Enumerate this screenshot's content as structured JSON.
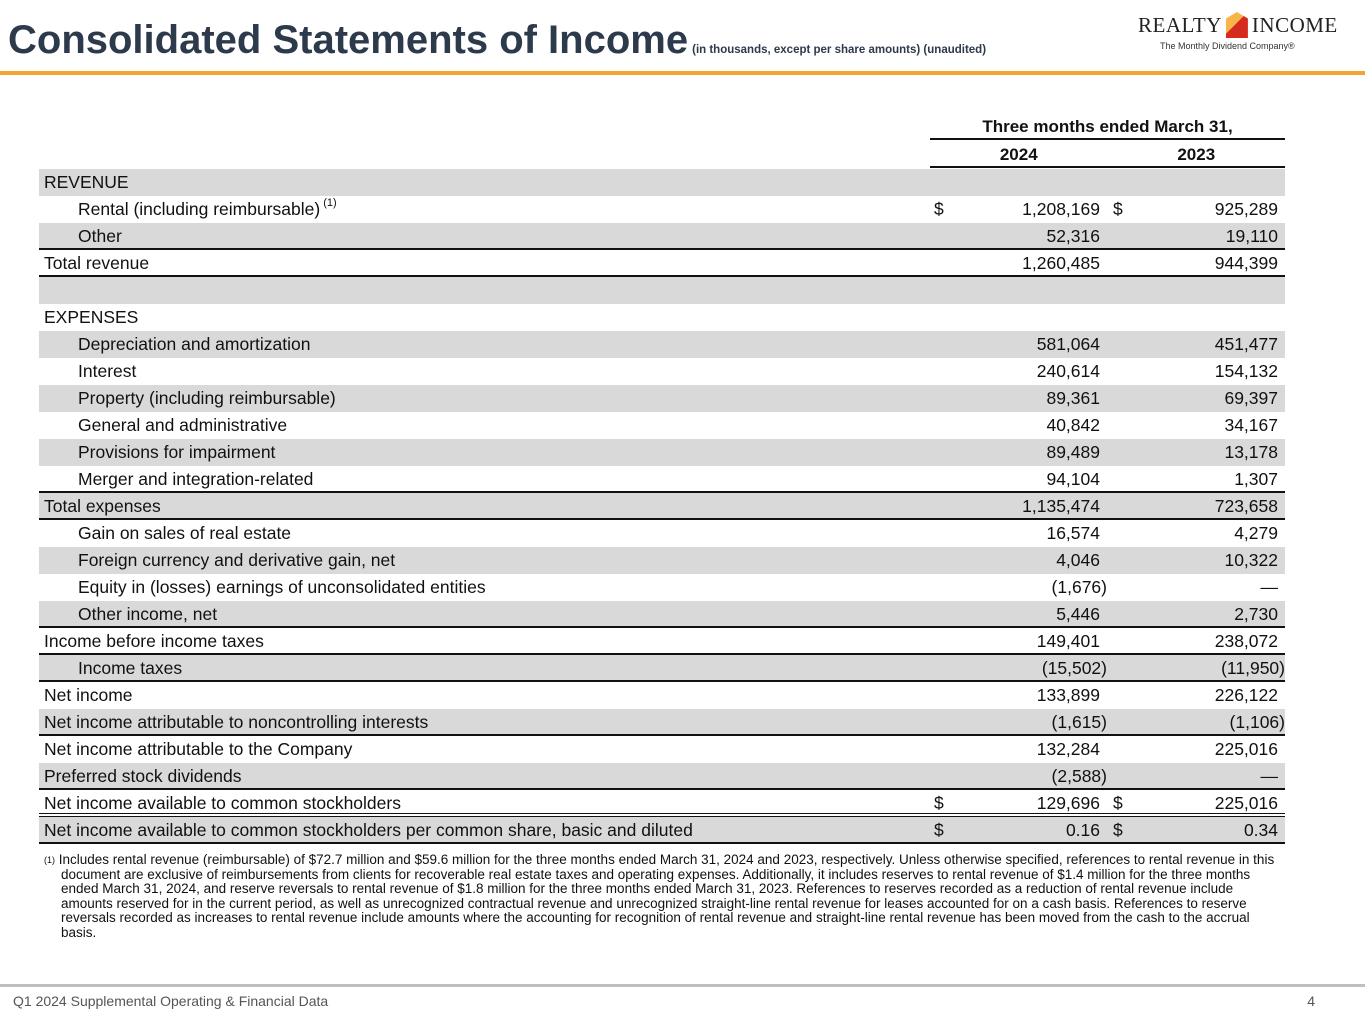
{
  "header": {
    "title": "Consolidated Statements of Income",
    "subtitle": "(in thousands, except per share amounts) (unaudited)"
  },
  "logo": {
    "name_left": "REALTY",
    "name_right": "INCOME",
    "tagline": "The Monthly Dividend Company®"
  },
  "table": {
    "period_header": "Three months ended March 31,",
    "years": [
      "2024",
      "2023"
    ],
    "rows": [
      {
        "label": "REVENUE",
        "v2024": "",
        "v2023": ""
      },
      {
        "label": "Rental (including reimbursable)",
        "note": "(1)",
        "d2024": "$",
        "v2024": "1,208,169",
        "d2023": "$",
        "v2023": "925,289"
      },
      {
        "label": "Other",
        "v2024": "52,316",
        "v2023": "19,110"
      },
      {
        "label": "Total revenue",
        "v2024": "1,260,485",
        "v2023": "944,399"
      },
      {
        "label": "",
        "v2024": "",
        "v2023": ""
      },
      {
        "label": "EXPENSES",
        "v2024": "",
        "v2023": ""
      },
      {
        "label": "Depreciation and amortization",
        "v2024": "581,064",
        "v2023": "451,477"
      },
      {
        "label": "Interest",
        "v2024": "240,614",
        "v2023": "154,132"
      },
      {
        "label": "Property (including reimbursable)",
        "v2024": "89,361",
        "v2023": "69,397"
      },
      {
        "label": "General and administrative",
        "v2024": "40,842",
        "v2023": "34,167"
      },
      {
        "label": "Provisions for impairment",
        "v2024": "89,489",
        "v2023": "13,178"
      },
      {
        "label": "Merger and integration-related",
        "v2024": "94,104",
        "v2023": "1,307"
      },
      {
        "label": "Total expenses",
        "v2024": "1,135,474",
        "v2023": "723,658"
      },
      {
        "label": "Gain on sales of real estate",
        "v2024": "16,574",
        "v2023": "4,279"
      },
      {
        "label": "Foreign currency and derivative gain, net",
        "v2024": "4,046",
        "v2023": "10,322"
      },
      {
        "label": "Equity in (losses) earnings of unconsolidated entities",
        "v2024": "(1,676)",
        "v2023": "—"
      },
      {
        "label": "Other income, net",
        "v2024": "5,446",
        "v2023": "2,730"
      },
      {
        "label": "Income before income taxes",
        "v2024": "149,401",
        "v2023": "238,072"
      },
      {
        "label": "Income taxes",
        "v2024": "(15,502)",
        "v2023": "(11,950)"
      },
      {
        "label": "Net income",
        "v2024": "133,899",
        "v2023": "226,122"
      },
      {
        "label": "Net income attributable to noncontrolling interests",
        "v2024": "(1,615)",
        "v2023": "(1,106)"
      },
      {
        "label": "Net income attributable to the Company",
        "v2024": "132,284",
        "v2023": "225,016"
      },
      {
        "label": "Preferred stock dividends",
        "v2024": "(2,588)",
        "v2023": "—"
      },
      {
        "label": "Net income available to common stockholders",
        "d2024": "$",
        "v2024": "129,696",
        "d2023": "$",
        "v2023": "225,016"
      },
      {
        "label": "Net income available to common stockholders per common share, basic and diluted",
        "d2024": "$",
        "v2024": "0.16",
        "d2023": "$",
        "v2023": "0.34"
      }
    ]
  },
  "footnote": {
    "marker": "(1)",
    "text": "Includes rental revenue (reimbursable) of $72.7 million and $59.6 million for the three months ended March 31, 2024 and 2023, respectively. Unless otherwise specified, references to rental revenue in this document are exclusive of reimbursements from clients for recoverable real estate taxes and operating expenses.  Additionally, it includes reserves to rental revenue of $1.4 million for the three months ended March 31, 2024, and reserve reversals to rental revenue of $1.8 million for the three months ended March 31, 2023. References to reserves recorded as a reduction of rental revenue include amounts reserved for in the current period, as well as unrecognized contractual revenue and unrecognized straight-line rental revenue for leases accounted for on a cash basis. References to reserve reversals recorded as increases to rental revenue include amounts where the accounting for recognition of rental revenue and straight-line rental revenue has been moved from the cash to the accrual basis."
  },
  "footer": {
    "text": "Q1 2024 Supplemental Operating & Financial Data",
    "page": "4"
  }
}
